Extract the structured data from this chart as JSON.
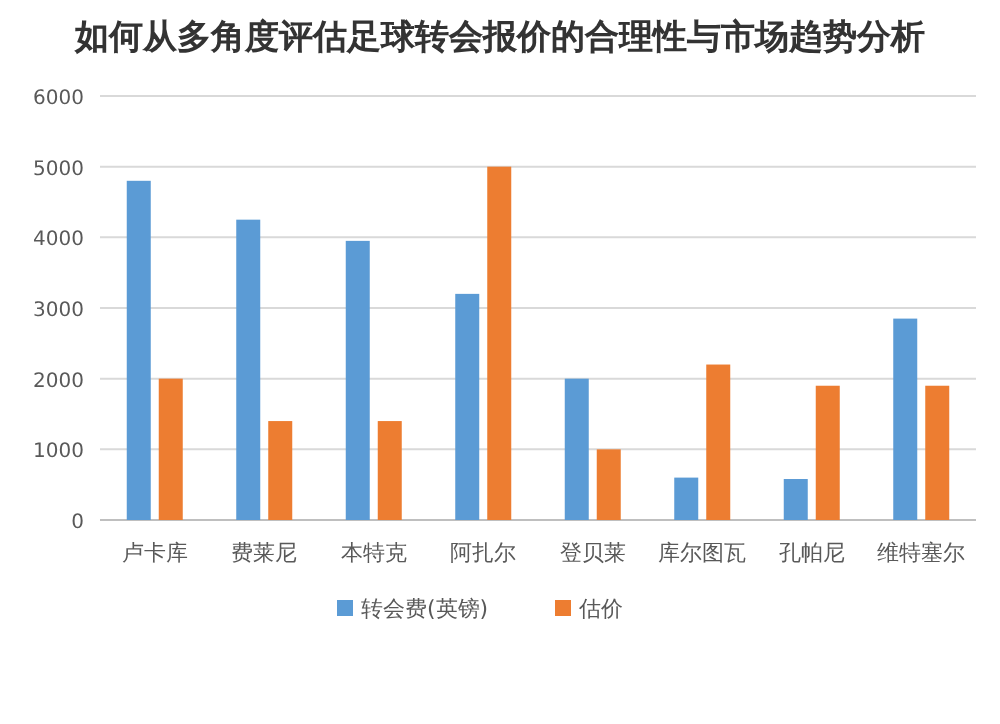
{
  "chart_data": {
    "type": "bar",
    "title": "如何从多角度评估足球转会报价的合理性与市场趋势分析",
    "categories": [
      "卢卡库",
      "费莱尼",
      "本特克",
      "阿扎尔",
      "登贝莱",
      "库尔图瓦",
      "孔帕尼",
      "维特塞尔"
    ],
    "series": [
      {
        "name": "转会费(英镑)",
        "color": "#5b9bd5",
        "values": [
          4800,
          4250,
          3950,
          3200,
          2000,
          600,
          580,
          2850
        ]
      },
      {
        "name": "估价",
        "color": "#ed7d31",
        "values": [
          2000,
          1400,
          1400,
          5000,
          1000,
          2200,
          1900,
          1900
        ]
      }
    ],
    "ylim": [
      0,
      6000
    ],
    "yticks": [
      0,
      1000,
      2000,
      3000,
      4000,
      5000,
      6000
    ],
    "grid": "y",
    "legend": "bottom"
  }
}
